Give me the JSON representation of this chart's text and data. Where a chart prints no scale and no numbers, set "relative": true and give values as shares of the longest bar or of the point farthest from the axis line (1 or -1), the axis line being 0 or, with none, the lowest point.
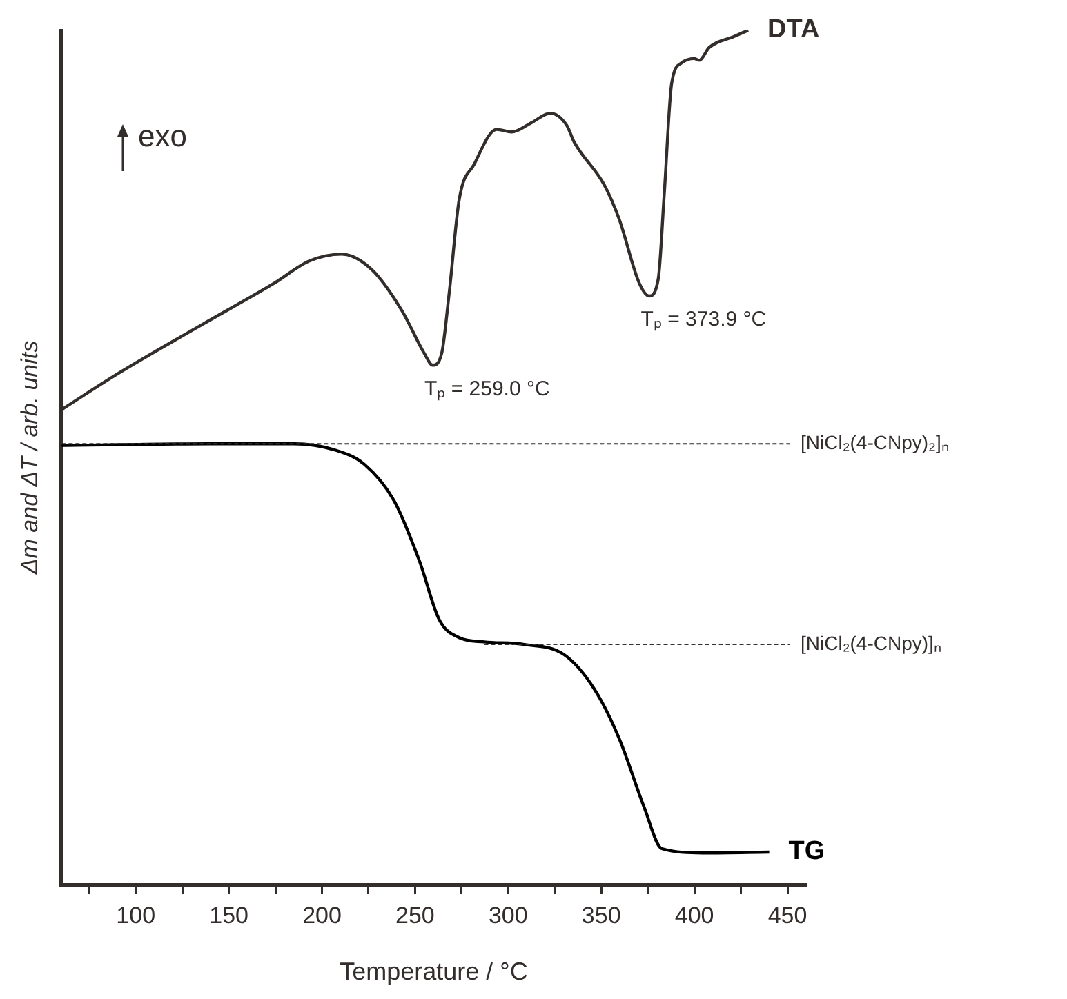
{
  "chart_data": {
    "type": "line",
    "relative": true,
    "xlabel": "Temperature / °C",
    "ylabel": "Δm and ΔT / arb. units",
    "xlim": [
      60,
      460
    ],
    "xticks": [
      {
        "value": 75,
        "label": null
      },
      100,
      {
        "value": 125,
        "label": null
      },
      150,
      {
        "value": 175,
        "label": null
      },
      200,
      {
        "value": 225,
        "label": null
      },
      250,
      {
        "value": 275,
        "label": null
      },
      300,
      {
        "value": 325,
        "label": null
      },
      350,
      {
        "value": 375,
        "label": null
      },
      400,
      {
        "value": 425,
        "label": null
      },
      450
    ],
    "series": [
      {
        "name": "DTA",
        "color": "#332e2c",
        "x": [
          60.2,
          91.1,
          136.8,
          174.4,
          193.2,
          210.6,
          226.7,
          242.9,
          254.9,
          259.5,
          264.3,
          268.3,
          273.7,
          281.7,
          293.8,
          301.8,
          312.6,
          322.6,
          331.4,
          335.5,
          351.6,
          359.6,
          370.4,
          375.7,
          380.6,
          383.8,
          387.8,
          393.2,
          399.9,
          402.6,
          408,
          421.4,
          428.9
        ],
        "values": [
          0.556,
          0.599,
          0.657,
          0.704,
          0.73,
          0.738,
          0.72,
          0.672,
          0.622,
          0.608,
          0.622,
          0.692,
          0.802,
          0.843,
          0.884,
          0.881,
          0.892,
          0.903,
          0.889,
          0.869,
          0.819,
          0.779,
          0.704,
          0.689,
          0.709,
          0.808,
          0.938,
          0.962,
          0.967,
          0.965,
          0.98,
          0.993,
          1.0
        ]
      },
      {
        "name": "TG",
        "color": "#000000",
        "x": [
          60.2,
          139.5,
          185.1,
          206.5,
          222.7,
          238.8,
          252.3,
          263,
          273.7,
          287.1,
          308.6,
          330.1,
          346.2,
          359.6,
          373.1,
          382.5,
          405.3,
          440.2
        ],
        "values": [
          0.514,
          0.516,
          0.516,
          0.509,
          0.492,
          0.449,
          0.379,
          0.31,
          0.289,
          0.284,
          0.281,
          0.269,
          0.229,
          0.171,
          0.09,
          0.042,
          0.037,
          0.038
        ]
      }
    ],
    "ref_lines": [
      {
        "axis": "y",
        "value": 0.516,
        "label": "[NiCl₂(4-CNpy)₂]ₙ",
        "line_style": "dashed",
        "color": "#333333"
      },
      {
        "axis": "y",
        "value": 0.281,
        "label": "[NiCl₂(4-CNpy)]ₙ",
        "line_style": "dashed",
        "color": "#333333"
      }
    ],
    "annotations": [
      {
        "text": "Tₚ = 259.0 °C",
        "x": 259.5,
        "y": 0.608
      },
      {
        "text": "Tₚ = 373.9 °C",
        "x": 375.7,
        "y": 0.689
      },
      "exo"
    ],
    "grid": false,
    "legend": false,
    "marker": "none",
    "line_style": "solid"
  }
}
